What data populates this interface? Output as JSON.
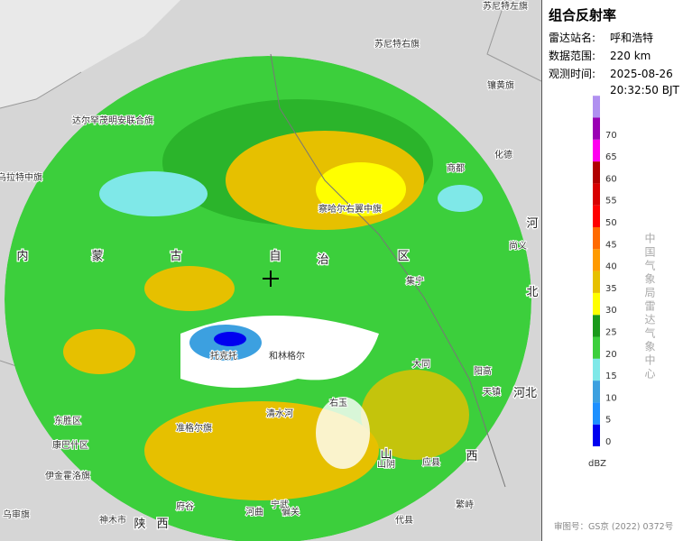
{
  "title": "组合反射率",
  "info": [
    {
      "label": "雷达站名:",
      "value": "呼和浩特"
    },
    {
      "label": "数据范围:",
      "value": "220 km"
    },
    {
      "label": "观测时间:",
      "value": "2025-08-26"
    }
  ],
  "time2": "20:32:50 BJT",
  "legend": {
    "unit": "dBZ",
    "levels": [
      {
        "value": 0,
        "color": "#0000f0"
      },
      {
        "value": 5,
        "color": "#1e90ff"
      },
      {
        "value": 10,
        "color": "#3ca0e0"
      },
      {
        "value": 15,
        "color": "#7fe8e8"
      },
      {
        "value": 20,
        "color": "#3ccf3c"
      },
      {
        "value": 25,
        "color": "#1a9a1a"
      },
      {
        "value": 30,
        "color": "#ffff00"
      },
      {
        "value": 35,
        "color": "#e6c000"
      },
      {
        "value": 40,
        "color": "#ff9a00"
      },
      {
        "value": 45,
        "color": "#ff6a00"
      },
      {
        "value": 50,
        "color": "#ff0000"
      },
      {
        "value": 55,
        "color": "#d80000"
      },
      {
        "value": 60,
        "color": "#b00000"
      },
      {
        "value": 65,
        "color": "#ff00f0"
      },
      {
        "value": 70,
        "color": "#9a00b4"
      }
    ],
    "top_color": "#b090f0"
  },
  "agency": "中国气象局雷达气象中心",
  "approval": "审图号：GS京 (2022) 0372号",
  "places": [
    "苏尼特右旗",
    "镶黄旗",
    "达尔罕茂明安联合旗",
    "商都",
    "化德",
    "察哈尔右翼中旗",
    "尚义",
    "集宁",
    "托克托",
    "和林格尔",
    "清水河",
    "右玉",
    "准格尔旗",
    "东胜区",
    "康巴什区",
    "伊金霍洛旗",
    "乌审旗",
    "神木市",
    "府谷",
    "河曲",
    "偏关",
    "山阴",
    "应县",
    "大同",
    "阳高",
    "天镇",
    "繁峙",
    "代县",
    "宁武",
    "苏尼特左旗",
    "乌拉特中旗"
  ],
  "provinces": [
    "内",
    "蒙",
    "古",
    "自",
    "治",
    "区",
    "河",
    "北",
    "河北",
    "陕",
    "西",
    "山",
    "西"
  ]
}
